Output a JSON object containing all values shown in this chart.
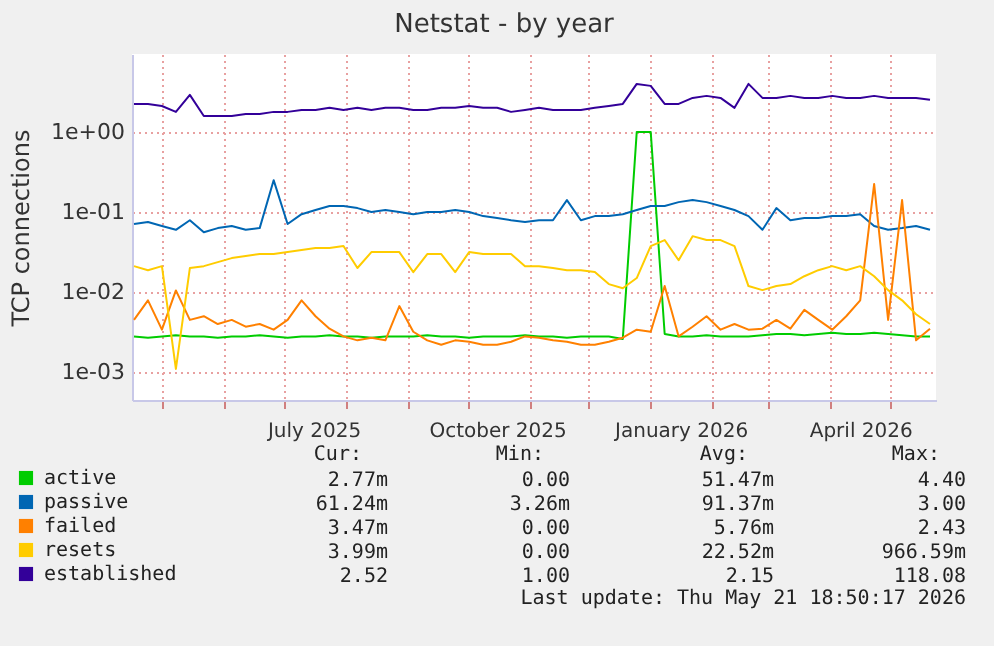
{
  "chart_data": {
    "type": "line",
    "title": "Netstat - by year",
    "ylabel": "TCP connections",
    "log": "y",
    "grid": true,
    "legend": "bottom left",
    "ylim": [
      0.00045,
      9.4
    ],
    "yticks": [
      {
        "value": 0.001,
        "label": "1e-03"
      },
      {
        "value": 0.01,
        "label": "1e-02"
      },
      {
        "value": 0.1,
        "label": "1e-01"
      },
      {
        "value": 1,
        "label": "1e+00"
      }
    ],
    "xlim": [
      "2025-04-16",
      "2026-05-24"
    ],
    "xticks": [
      {
        "value": "2025-05-01",
        "label": null
      },
      {
        "value": "2025-06-01",
        "label": null
      },
      {
        "value": "2025-07-01",
        "label": null
      },
      {
        "value": "2025-07-16",
        "label": "July 2025"
      },
      {
        "value": "2025-08-01",
        "label": null
      },
      {
        "value": "2025-09-01",
        "label": null
      },
      {
        "value": "2025-10-01",
        "label": null
      },
      {
        "value": "2025-10-16",
        "label": "October 2025"
      },
      {
        "value": "2025-11-01",
        "label": null
      },
      {
        "value": "2025-12-01",
        "label": null
      },
      {
        "value": "2026-01-01",
        "label": null
      },
      {
        "value": "2026-01-16",
        "label": "January 2026"
      },
      {
        "value": "2026-02-01",
        "label": null
      },
      {
        "value": "2026-03-01",
        "label": null
      },
      {
        "value": "2026-04-01",
        "label": null
      },
      {
        "value": "2026-04-16",
        "label": "April 2026"
      },
      {
        "value": "2026-05-01",
        "label": null
      }
    ],
    "x": [
      "2025-04-17",
      "2025-04-24",
      "2025-05-01",
      "2025-05-08",
      "2025-05-15",
      "2025-05-22",
      "2025-05-29",
      "2025-06-05",
      "2025-06-12",
      "2025-06-19",
      "2025-06-26",
      "2025-07-03",
      "2025-07-10",
      "2025-07-17",
      "2025-07-24",
      "2025-07-31",
      "2025-08-07",
      "2025-08-14",
      "2025-08-21",
      "2025-08-28",
      "2025-09-04",
      "2025-09-11",
      "2025-09-18",
      "2025-09-25",
      "2025-10-02",
      "2025-10-09",
      "2025-10-16",
      "2025-10-23",
      "2025-10-30",
      "2025-11-06",
      "2025-11-13",
      "2025-11-20",
      "2025-11-27",
      "2025-12-04",
      "2025-12-11",
      "2025-12-18",
      "2025-12-25",
      "2026-01-01",
      "2026-01-08",
      "2026-01-15",
      "2026-01-22",
      "2026-01-29",
      "2026-02-05",
      "2026-02-12",
      "2026-02-19",
      "2026-02-26",
      "2026-03-05",
      "2026-03-12",
      "2026-03-19",
      "2026-03-26",
      "2026-04-02",
      "2026-04-09",
      "2026-04-16",
      "2026-04-23",
      "2026-04-30",
      "2026-05-07",
      "2026-05-14",
      "2026-05-21"
    ],
    "series": [
      {
        "name": "active",
        "color": "#00cc00",
        "values": [
          0.0028,
          0.0027,
          0.0028,
          0.0029,
          0.0028,
          0.0028,
          0.0027,
          0.0028,
          0.0028,
          0.0029,
          0.0028,
          0.0027,
          0.0028,
          0.0028,
          0.0029,
          0.0028,
          0.0028,
          0.0027,
          0.0028,
          0.0028,
          0.0028,
          0.0029,
          0.0028,
          0.0028,
          0.0027,
          0.0028,
          0.0028,
          0.0028,
          0.0029,
          0.0028,
          0.0028,
          0.0027,
          0.0028,
          0.0028,
          0.0028,
          0.0026,
          1.0,
          1.0,
          0.003,
          0.0028,
          0.0028,
          0.0029,
          0.0028,
          0.0028,
          0.0028,
          0.0029,
          0.003,
          0.003,
          0.0029,
          0.003,
          0.0031,
          0.003,
          0.003,
          0.0031,
          0.003,
          0.0029,
          0.0028,
          0.0028
        ]
      },
      {
        "name": "passive",
        "color": "#0066b3",
        "values": [
          0.071,
          0.075,
          0.067,
          0.06,
          0.079,
          0.056,
          0.063,
          0.067,
          0.06,
          0.063,
          0.25,
          0.071,
          0.094,
          0.106,
          0.119,
          0.119,
          0.112,
          0.1,
          0.106,
          0.1,
          0.094,
          0.1,
          0.1,
          0.106,
          0.1,
          0.089,
          0.084,
          0.079,
          0.075,
          0.079,
          0.079,
          0.141,
          0.079,
          0.089,
          0.089,
          0.094,
          0.106,
          0.119,
          0.119,
          0.133,
          0.141,
          0.133,
          0.119,
          0.106,
          0.089,
          0.06,
          0.112,
          0.079,
          0.084,
          0.084,
          0.089,
          0.089,
          0.094,
          0.067,
          0.06,
          0.063,
          0.067,
          0.06
        ]
      },
      {
        "name": "failed",
        "color": "#ff8000",
        "values": [
          0.0045,
          0.0079,
          0.0034,
          0.0105,
          0.0045,
          0.005,
          0.004,
          0.0045,
          0.0037,
          0.004,
          0.0034,
          0.0045,
          0.0079,
          0.005,
          0.0035,
          0.0028,
          0.0025,
          0.0027,
          0.0025,
          0.0067,
          0.0032,
          0.0025,
          0.0022,
          0.0025,
          0.0024,
          0.0022,
          0.0022,
          0.0024,
          0.0028,
          0.0027,
          0.0025,
          0.0024,
          0.0022,
          0.0022,
          0.0024,
          0.0027,
          0.0034,
          0.0032,
          0.0119,
          0.0028,
          0.0037,
          0.005,
          0.0034,
          0.004,
          0.0034,
          0.0035,
          0.0045,
          0.0035,
          0.006,
          0.0045,
          0.0034,
          0.005,
          0.0079,
          0.224,
          0.0045,
          0.141,
          0.0025,
          0.0035
        ]
      },
      {
        "name": "resets",
        "color": "#ffcc00",
        "values": [
          0.0211,
          0.0188,
          0.0211,
          0.0011,
          0.02,
          0.0211,
          0.0237,
          0.0266,
          0.0282,
          0.0299,
          0.0299,
          0.0316,
          0.0335,
          0.0355,
          0.0355,
          0.0376,
          0.02,
          0.0316,
          0.0316,
          0.0316,
          0.0178,
          0.0299,
          0.0299,
          0.0178,
          0.0316,
          0.0299,
          0.0299,
          0.0299,
          0.0211,
          0.0211,
          0.02,
          0.0188,
          0.0188,
          0.0178,
          0.0126,
          0.0112,
          0.015,
          0.0376,
          0.0447,
          0.025,
          0.05,
          0.0447,
          0.0447,
          0.0376,
          0.0119,
          0.0106,
          0.0119,
          0.0126,
          0.0158,
          0.0188,
          0.0211,
          0.0188,
          0.0211,
          0.0158,
          0.0106,
          0.0079,
          0.0053,
          0.004
        ]
      },
      {
        "name": "established",
        "color": "#330099",
        "values": [
          2.24,
          2.24,
          2.11,
          1.78,
          2.9,
          1.58,
          1.58,
          1.58,
          1.68,
          1.68,
          1.78,
          1.78,
          1.88,
          1.88,
          2.0,
          1.88,
          2.0,
          1.88,
          2.0,
          2.0,
          1.88,
          1.88,
          2.0,
          2.0,
          2.11,
          2.0,
          2.0,
          1.78,
          1.88,
          2.0,
          1.88,
          1.88,
          1.88,
          2.0,
          2.11,
          2.24,
          3.98,
          3.76,
          2.24,
          2.24,
          2.66,
          2.82,
          2.66,
          2.0,
          3.98,
          2.66,
          2.66,
          2.82,
          2.66,
          2.66,
          2.82,
          2.66,
          2.66,
          2.82,
          2.66,
          2.66,
          2.66,
          2.52
        ]
      }
    ],
    "annotations": [
      "Cur:",
      "Min:",
      "Avg:",
      "Max:",
      "2.77m",
      "0.00",
      "51.47m",
      "4.40",
      "61.24m",
      "3.26m",
      "91.37m",
      "3.00",
      "3.47m",
      "0.00",
      "5.76m",
      "2.43",
      "3.99m",
      "0.00",
      "22.52m",
      "966.59m",
      "2.52",
      "1.00",
      "2.15",
      "118.08",
      "Last update: Thu May 21 18:50:17 2026"
    ]
  }
}
